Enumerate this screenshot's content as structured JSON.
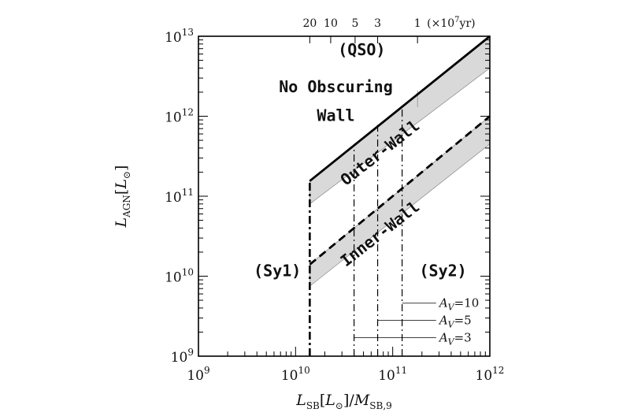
{
  "chart_data": {
    "type": "line",
    "xscale": "log",
    "yscale": "log",
    "xlim": [
      1000000000.0,
      1000000000000.0
    ],
    "ylim": [
      1000000000.0,
      10000000000000.0
    ],
    "xlabel": {
      "main": "L",
      "sub": "SB",
      "bracket": "[L",
      "sun": "⊙",
      "close": "]/",
      "m": "M",
      "msub": "SB,9"
    },
    "ylabel": {
      "main": "L",
      "sub": "AGN",
      "bracket": "[L",
      "sun": "⊙",
      "close": "]"
    },
    "x_ticks": [
      {
        "value": 1000000000.0,
        "base": "10",
        "exp": "9"
      },
      {
        "value": 10000000000.0,
        "base": "10",
        "exp": "10"
      },
      {
        "value": 100000000000.0,
        "base": "10",
        "exp": "11"
      },
      {
        "value": 1000000000000.0,
        "base": "10",
        "exp": "12"
      }
    ],
    "y_ticks": [
      {
        "value": 1000000000.0,
        "base": "10",
        "exp": "9"
      },
      {
        "value": 10000000000.0,
        "base": "10",
        "exp": "10"
      },
      {
        "value": 100000000000.0,
        "base": "10",
        "exp": "11"
      },
      {
        "value": 1000000000000.0,
        "base": "10",
        "exp": "12"
      },
      {
        "value": 10000000000000.0,
        "base": "10",
        "exp": "13"
      }
    ],
    "top_axis": {
      "ticks": [
        {
          "label": "20",
          "x": 14000000000.0
        },
        {
          "label": "10",
          "x": 23000000000.0
        },
        {
          "label": "5",
          "x": 41000000000.0
        },
        {
          "label": "3",
          "x": 70000000000.0
        },
        {
          "label": "1",
          "x": 180000000000.0
        }
      ],
      "unit_prefix": "(×10",
      "unit_exp": "7",
      "unit_suffix": "yr)"
    },
    "series": [
      {
        "style": "solid",
        "x": [
          14000000000.0,
          1000000000000.0
        ],
        "y": [
          155000000000.0,
          10000000000000.0
        ]
      },
      {
        "style": "dashed",
        "x": [
          14000000000.0,
          1000000000000.0
        ],
        "y": [
          14000000000.0,
          1000000000000.0
        ]
      }
    ],
    "bands": [
      {
        "x": [
          14000000000.0,
          1000000000000.0
        ],
        "y_upper": [
          155000000000.0,
          10000000000000.0
        ],
        "y_lower": [
          80000000000.0,
          4000000000000.0
        ]
      },
      {
        "x": [
          14000000000.0,
          1000000000000.0
        ],
        "y_upper": [
          14000000000.0,
          1000000000000.0
        ],
        "y_lower": [
          7500000000.0,
          450000000000.0
        ]
      }
    ],
    "vertical_lines": [
      {
        "x": 14000000000.0,
        "y": [
          1000000000.0,
          155000000000.0
        ],
        "style": "dashdot-bold"
      },
      {
        "x": 40000000000.0,
        "y": [
          1000000000.0,
          450000000000.0
        ],
        "style": "dashdot"
      },
      {
        "x": 70000000000.0,
        "y": [
          1000000000.0,
          780000000000.0
        ],
        "style": "dashdot"
      },
      {
        "x": 125000000000.0,
        "y": [
          1000000000.0,
          1350000000000.0
        ],
        "style": "dashdot"
      },
      {
        "x": 180000000000.0,
        "y": [
          1300000000000.0,
          2100000000000.0
        ],
        "style": "thin"
      }
    ],
    "av_markers": [
      {
        "label_a": "A",
        "label_sub": "V",
        "label_val": "=10",
        "x_start": 125000000000.0,
        "x_end": 280000000000.0,
        "y": 4600000000.0
      },
      {
        "label_a": "A",
        "label_sub": "V",
        "label_val": "=5",
        "x_start": 70000000000.0,
        "x_end": 280000000000.0,
        "y": 2800000000.0
      },
      {
        "label_a": "A",
        "label_sub": "V",
        "label_val": "=3",
        "x_start": 40000000000.0,
        "x_end": 280000000000.0,
        "y": 1700000000.0
      }
    ],
    "annotations": [
      {
        "id": "qso",
        "text": "(QSO)",
        "x": 48000000000.0,
        "y": 5800000000000.0,
        "rotate": 0
      },
      {
        "id": "no-obscuring-1",
        "text": "No Obscuring",
        "x": 26000000000.0,
        "y": 2000000000000.0,
        "rotate": 0
      },
      {
        "id": "no-obscuring-2",
        "text": "Wall",
        "x": 26000000000.0,
        "y": 870000000000.0,
        "rotate": 0
      },
      {
        "id": "outer-wall",
        "text": "Outer-Wall",
        "x": 80000000000.0,
        "y": 310000000000.0,
        "rotate": -38
      },
      {
        "id": "inner-wall",
        "text": "Inner-Wall",
        "x": 80000000000.0,
        "y": 30000000000.0,
        "rotate": -38
      },
      {
        "id": "sy1",
        "text": "(Sy1)",
        "x": 6500000000.0,
        "y": 10000000000.0,
        "rotate": 0
      },
      {
        "id": "sy2",
        "text": "(Sy2)",
        "x": 330000000000.0,
        "y": 10000000000.0,
        "rotate": 0
      }
    ]
  }
}
